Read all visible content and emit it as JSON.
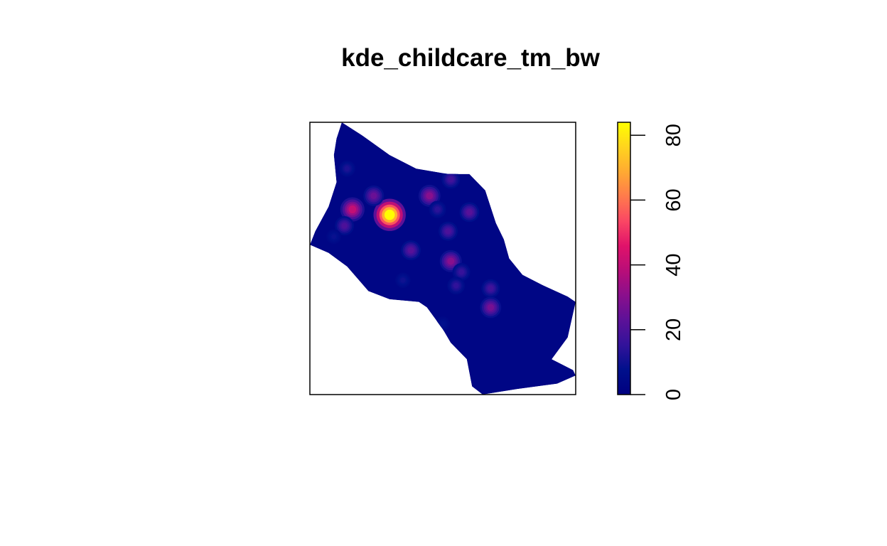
{
  "chart_data": {
    "type": "heatmap",
    "title": "kde_childcare_tm_bw",
    "xlabel": "",
    "ylabel": "",
    "legend": {
      "placement": "right",
      "range": [
        0,
        84
      ],
      "ticks": [
        0,
        20,
        40,
        60,
        80
      ],
      "tick_labels": [
        "0",
        "20",
        "40",
        "60",
        "80"
      ],
      "palette": [
        "#000080",
        "#00108C",
        "#32129A",
        "#5C1198",
        "#8A0F8C",
        "#B80E78",
        "#E0126A",
        "#FA4664",
        "#FF7A4C",
        "#FFAA32",
        "#FFD41E",
        "#FFFF00"
      ]
    },
    "surface": {
      "background_value": 3,
      "peaks": [
        {
          "x": 0.3,
          "y": 0.34,
          "value": 84
        },
        {
          "x": 0.16,
          "y": 0.32,
          "value": 40
        },
        {
          "x": 0.13,
          "y": 0.38,
          "value": 20
        },
        {
          "x": 0.24,
          "y": 0.27,
          "value": 25
        },
        {
          "x": 0.45,
          "y": 0.27,
          "value": 30
        },
        {
          "x": 0.53,
          "y": 0.21,
          "value": 18
        },
        {
          "x": 0.48,
          "y": 0.32,
          "value": 14
        },
        {
          "x": 0.6,
          "y": 0.33,
          "value": 22
        },
        {
          "x": 0.52,
          "y": 0.4,
          "value": 20
        },
        {
          "x": 0.38,
          "y": 0.47,
          "value": 22
        },
        {
          "x": 0.53,
          "y": 0.51,
          "value": 30
        },
        {
          "x": 0.57,
          "y": 0.55,
          "value": 16
        },
        {
          "x": 0.68,
          "y": 0.61,
          "value": 18
        },
        {
          "x": 0.68,
          "y": 0.68,
          "value": 27
        },
        {
          "x": 0.55,
          "y": 0.6,
          "value": 15
        },
        {
          "x": 0.14,
          "y": 0.17,
          "value": 12
        },
        {
          "x": 0.09,
          "y": 0.42,
          "value": 9
        },
        {
          "x": 0.5,
          "y": 0.74,
          "value": 8
        },
        {
          "x": 0.35,
          "y": 0.58,
          "value": 10
        }
      ],
      "region_outline": [
        [
          0.12,
          0.0
        ],
        [
          0.2,
          0.05
        ],
        [
          0.3,
          0.12
        ],
        [
          0.4,
          0.17
        ],
        [
          0.52,
          0.19
        ],
        [
          0.6,
          0.19
        ],
        [
          0.66,
          0.25
        ],
        [
          0.68,
          0.31
        ],
        [
          0.7,
          0.37
        ],
        [
          0.73,
          0.43
        ],
        [
          0.75,
          0.5
        ],
        [
          0.8,
          0.56
        ],
        [
          0.88,
          0.6
        ],
        [
          0.97,
          0.64
        ],
        [
          1.0,
          0.66
        ],
        [
          0.97,
          0.79
        ],
        [
          0.91,
          0.87
        ],
        [
          0.99,
          0.91
        ],
        [
          1.0,
          0.93
        ],
        [
          0.93,
          0.96
        ],
        [
          0.78,
          0.98
        ],
        [
          0.65,
          1.0
        ],
        [
          0.61,
          0.97
        ],
        [
          0.59,
          0.87
        ],
        [
          0.53,
          0.81
        ],
        [
          0.5,
          0.76
        ],
        [
          0.44,
          0.68
        ],
        [
          0.41,
          0.66
        ],
        [
          0.3,
          0.65
        ],
        [
          0.22,
          0.62
        ],
        [
          0.14,
          0.53
        ],
        [
          0.07,
          0.48
        ],
        [
          0.0,
          0.45
        ],
        [
          0.02,
          0.4
        ],
        [
          0.07,
          0.31
        ],
        [
          0.1,
          0.22
        ],
        [
          0.09,
          0.12
        ],
        [
          0.1,
          0.06
        ]
      ]
    }
  }
}
